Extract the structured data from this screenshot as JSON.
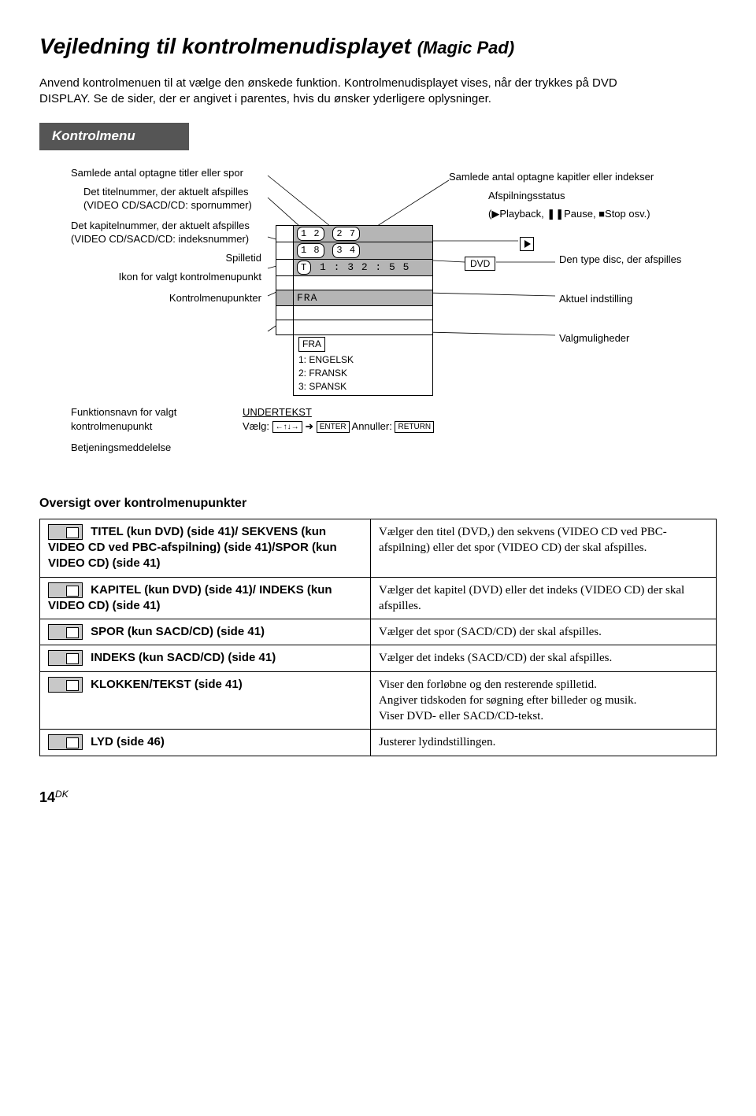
{
  "title_main": "Vejledning til kontrolmenudisplayet",
  "title_sub": "(Magic Pad)",
  "intro": "Anvend kontrolmenuen til at vælge den ønskede funktion. Kontrolmenudisplayet vises, når der trykkes på DVD DISPLAY. Se de sider, der er angivet i parentes, hvis du ønsker yderligere oplysninger.",
  "section_title": "Kontrolmenu",
  "left": {
    "lbl1": "Samlede antal optagne titler eller spor",
    "lbl2": "Det titelnummer, der aktuelt afspilles (VIDEO CD/SACD/CD: spornummer)",
    "lbl3": "Det kapitelnummer, der aktuelt afspilles (VIDEO CD/SACD/CD: indeksnummer)",
    "lbl4": "Spilletid",
    "lbl5": "Ikon for valgt kontrolmenupunkt",
    "lbl6": "Kontrolmenupunkter"
  },
  "screen": {
    "row1_a": "1 2",
    "row1_b": "2 7",
    "row2_a": "1 8",
    "row2_b": "3 4",
    "row3_t": "T",
    "row3_time": "1 : 3 2 : 5 5",
    "row4": "FRA",
    "row5": "FRA",
    "opt1": "1: ENGELSK",
    "opt2": "2: FRANSK",
    "opt3": "3: SPANSK"
  },
  "right": {
    "lbl1": "Samlede antal optagne kapitler eller indekser",
    "lbl2": "Afspilningsstatus",
    "lbl3": "(▶Playback, ❚❚Pause, ■Stop osv.)",
    "dvd": "DVD",
    "disctype": "Den type disc, der afspilles",
    "setting": "Aktuel indstilling",
    "options": "Valgmuligheder"
  },
  "func": {
    "left1": "Funktionsnavn for valgt kontrolmenupunkt",
    "left2": "Betjeningsmeddelelse",
    "line1": "UNDERTEKST",
    "line2a": "Vælg:",
    "line2b": "Annuller:",
    "enter": "ENTER",
    "return": "RETURN"
  },
  "oversigt": "Oversigt over kontrolmenupunkter",
  "table": [
    {
      "l": " TITEL (kun DVD) (side 41)/ SEKVENS (kun VIDEO CD ved PBC-afspilning) (side 41)/SPOR (kun VIDEO CD) (side 41)",
      "r": "Vælger den titel (DVD,) den sekvens (VIDEO CD ved PBC-afspilning) eller det spor (VIDEO CD) der skal afspilles."
    },
    {
      "l": " KAPITEL (kun DVD) (side 41)/ INDEKS (kun VIDEO CD) (side 41)",
      "r": "Vælger det kapitel (DVD) eller det indeks (VIDEO CD) der skal afspilles."
    },
    {
      "l": " SPOR (kun SACD/CD) (side 41)",
      "r": "Vælger det spor (SACD/CD) der skal afspilles."
    },
    {
      "l": " INDEKS (kun SACD/CD) (side 41)",
      "r": "Vælger det indeks (SACD/CD) der skal afspilles."
    },
    {
      "l": " KLOKKEN/TEKST (side 41)",
      "r": "Viser den forløbne og den resterende spilletid.\nAngiver tidskoden for søgning efter billeder og musik.\nViser DVD- eller SACD/CD-tekst."
    },
    {
      "l": " LYD (side 46)",
      "r": "Justerer lydindstillingen."
    }
  ],
  "page": {
    "num": "14",
    "lang": "DK"
  }
}
